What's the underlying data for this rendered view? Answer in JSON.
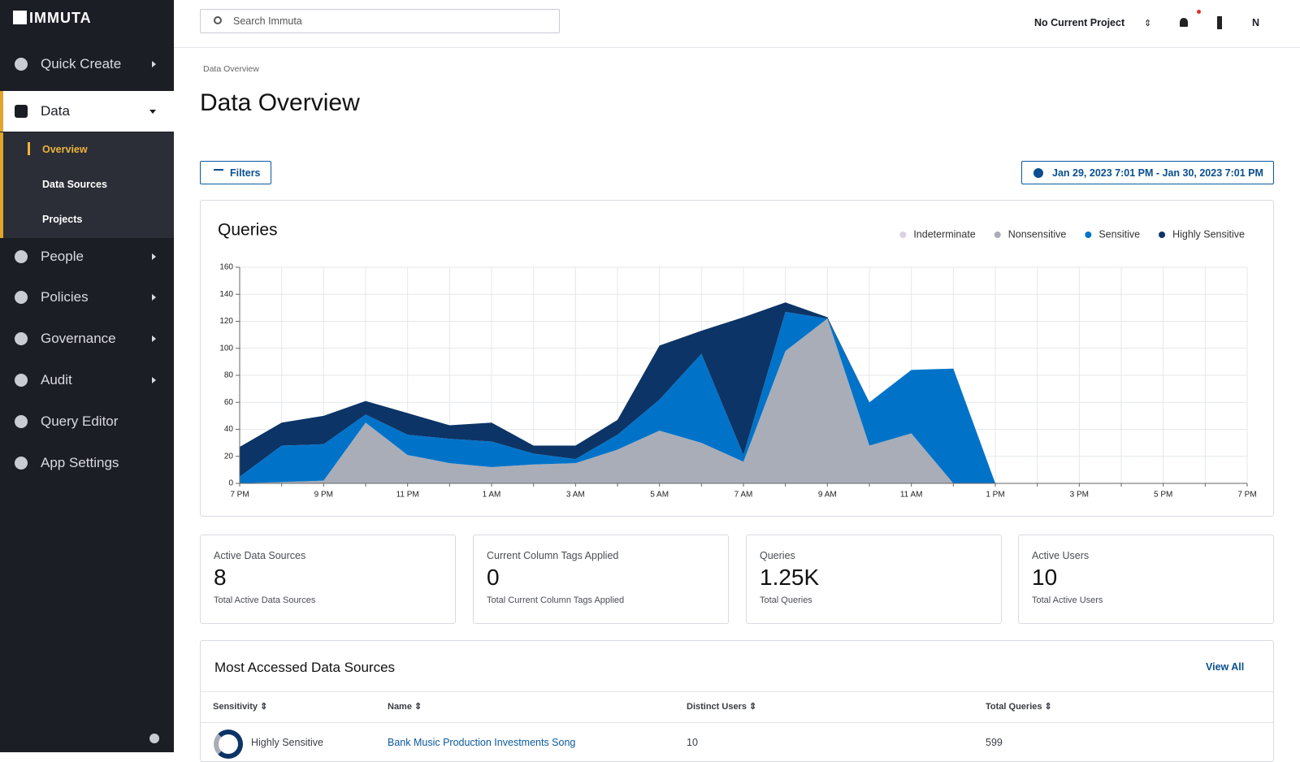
{
  "sidebar": {
    "logo": "IMMUTA",
    "items": [
      "Quick Create",
      "Data",
      "People",
      "Policies",
      "Governance",
      "Audit",
      "Query Editor",
      "App Settings"
    ],
    "subitems": [
      "Overview",
      "Data Sources",
      "Projects"
    ]
  },
  "header": {
    "search_placeholder": "Search Immuta",
    "project": "No Current Project",
    "user_initial": "N"
  },
  "breadcrumb": "Data Overview",
  "title": "Data Overview",
  "filters": "Filters",
  "date_range": "Jan 29, 2023 7:01 PM - Jan 30, 2023 7:01 PM",
  "chart_data": {
    "type": "stacked-area",
    "title": "Queries",
    "categories": [
      "7 PM",
      null,
      "9 PM",
      null,
      "11 PM",
      null,
      "1 AM",
      null,
      "3 AM",
      null,
      "5 AM",
      null,
      "7 AM",
      null,
      "9 AM",
      null,
      "11 AM",
      null,
      "1 PM",
      null,
      "3 PM",
      null,
      "5 PM",
      null,
      "7 PM"
    ],
    "series": [
      {
        "name": "Indeterminate",
        "color": "#d8d2e2",
        "values": [
          0,
          0,
          0,
          0,
          0,
          0,
          0,
          0,
          0,
          0,
          0,
          0,
          0,
          0,
          0,
          0,
          0,
          0,
          0,
          0,
          0,
          0,
          0,
          0,
          0
        ]
      },
      {
        "name": "Nonsensitive",
        "color": "#a9adb8",
        "values": [
          0,
          1,
          2,
          45,
          21,
          15,
          12,
          14,
          15,
          25,
          39,
          30,
          16,
          98,
          122,
          28,
          37,
          0,
          0,
          0,
          0,
          0,
          0,
          0,
          0
        ]
      },
      {
        "name": "Sensitive",
        "color": "#0073c9",
        "values": [
          5,
          27,
          27,
          6,
          15,
          18,
          19,
          8,
          3,
          11,
          23,
          66,
          5,
          29,
          0,
          32,
          47,
          85,
          0,
          0,
          0,
          0,
          0,
          0,
          0
        ]
      },
      {
        "name": "Highly Sensitive",
        "color": "#0c3466",
        "values": [
          22,
          17,
          21,
          10,
          16,
          10,
          14,
          6,
          10,
          11,
          40,
          17,
          102,
          7,
          1,
          0,
          0,
          0,
          0,
          0,
          0,
          0,
          0,
          0,
          0
        ]
      }
    ],
    "ylim": [
      0,
      160
    ],
    "yticks": [
      0,
      20,
      40,
      60,
      80,
      100,
      120,
      140,
      160
    ],
    "grid": true,
    "legend": "top-right"
  },
  "stats": [
    {
      "label": "Active Data Sources",
      "value": 8,
      "caption": "Total Active Data Sources"
    },
    {
      "label": "Current Column Tags Applied",
      "value": 0,
      "caption": "Total Current Column Tags Applied"
    },
    {
      "label": "Queries",
      "value": "1.25K",
      "caption": "Total Queries"
    },
    {
      "label": "Active Users",
      "value": 10,
      "caption": "Total Active Users"
    }
  ],
  "table": {
    "title": "Most Accessed Data Sources",
    "view_all": "View All",
    "columns": [
      "Sensitivity",
      "Name",
      "Distinct Users",
      "Total Queries"
    ],
    "rows": [
      [
        "Highly Sensitive",
        "Bank Music Production Investments Song",
        10,
        599
      ]
    ]
  }
}
